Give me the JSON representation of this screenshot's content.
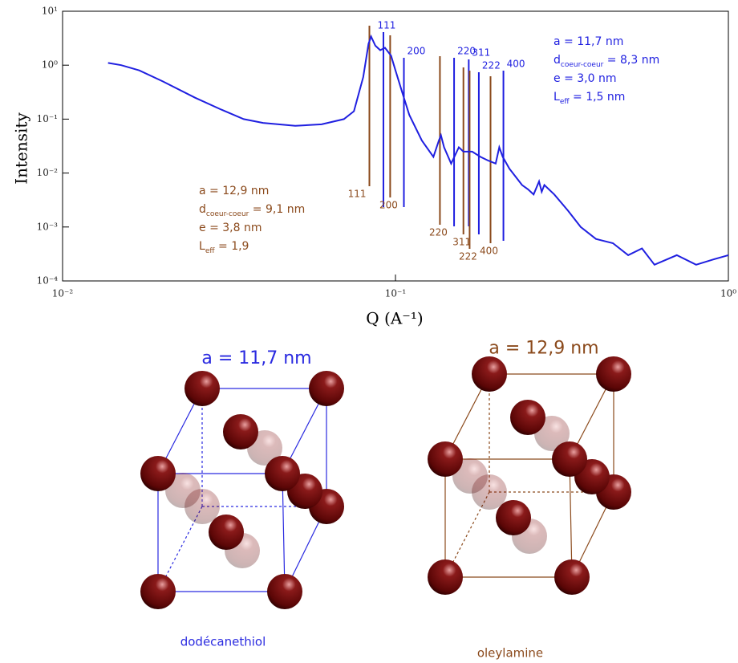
{
  "chart_data": {
    "type": "line",
    "xlabel": "Q (A⁻¹)",
    "ylabel": "Intensity",
    "xscale": "log",
    "yscale": "log",
    "xlim": [
      0.01,
      1
    ],
    "ylim": [
      0.0001,
      10
    ],
    "xticks": [
      {
        "value": 0.01,
        "label": "10⁻²"
      },
      {
        "value": 0.1,
        "label": "10⁻¹"
      },
      {
        "value": 1,
        "label": "10⁰"
      }
    ],
    "yticks": [
      {
        "value": 0.0001,
        "label": "10⁻⁴"
      },
      {
        "value": 0.001,
        "label": "10⁻³"
      },
      {
        "value": 0.01,
        "label": "10⁻²"
      },
      {
        "value": 0.1,
        "label": "10⁻¹"
      },
      {
        "value": 1,
        "label": "10⁰"
      },
      {
        "value": 10,
        "label": "10¹"
      }
    ],
    "x": [
      0.0137,
      0.015,
      0.017,
      0.02,
      0.025,
      0.03,
      0.035,
      0.04,
      0.05,
      0.06,
      0.07,
      0.075,
      0.08,
      0.083,
      0.0845,
      0.087,
      0.09,
      0.093,
      0.097,
      0.1,
      0.105,
      0.11,
      0.12,
      0.13,
      0.135,
      0.137,
      0.14,
      0.147,
      0.155,
      0.16,
      0.17,
      0.18,
      0.19,
      0.2,
      0.205,
      0.21,
      0.22,
      0.24,
      0.25,
      0.26,
      0.27,
      0.275,
      0.28,
      0.3,
      0.33,
      0.36,
      0.4,
      0.45,
      0.5,
      0.55,
      0.6,
      0.7,
      0.8,
      0.9,
      1.0
    ],
    "series": [
      {
        "color": "#1f1fe0",
        "values": [
          1.1,
          1.0,
          0.8,
          0.5,
          0.25,
          0.15,
          0.1,
          0.085,
          0.075,
          0.08,
          0.1,
          0.14,
          0.6,
          2.5,
          3.4,
          2.3,
          1.9,
          2.1,
          1.5,
          0.8,
          0.3,
          0.12,
          0.04,
          0.02,
          0.04,
          0.05,
          0.03,
          0.015,
          0.03,
          0.025,
          0.025,
          0.02,
          0.017,
          0.015,
          0.03,
          0.02,
          0.012,
          0.006,
          0.005,
          0.004,
          0.007,
          0.0045,
          0.006,
          0.004,
          0.002,
          0.001,
          0.0006,
          0.0005,
          0.0003,
          0.0004,
          0.0002,
          0.0003,
          0.0002,
          0.00025,
          0.0003
        ]
      }
    ],
    "reflections": [
      {
        "color": "#1f1fe0",
        "peaks": [
          {
            "hkl": "111",
            "q": 0.092
          },
          {
            "hkl": "200",
            "q": 0.106
          },
          {
            "hkl": "220",
            "q": 0.15
          },
          {
            "hkl": "311",
            "q": 0.166
          },
          {
            "hkl": "222",
            "q": 0.178
          },
          {
            "hkl": "400",
            "q": 0.211
          }
        ]
      },
      {
        "color": "#8b4a1c",
        "peaks": [
          {
            "hkl": "111",
            "q": 0.0835
          },
          {
            "hkl": "200",
            "q": 0.0964
          },
          {
            "hkl": "220",
            "q": 0.136
          },
          {
            "hkl": "311",
            "q": 0.16
          },
          {
            "hkl": "222",
            "q": 0.167
          },
          {
            "hkl": "400",
            "q": 0.193
          }
        ]
      }
    ],
    "annotations": [
      {
        "color": "#1f1fe0",
        "lines": [
          {
            "text": "a = 11,7 nm"
          },
          {
            "text": "d",
            "sub": "coeur-coeur",
            "after": " = 8,3 nm"
          },
          {
            "text": "e = 3,0 nm"
          },
          {
            "text": "L",
            "sub": "eff",
            "after": " = 1,5 nm"
          }
        ]
      },
      {
        "color": "#8b4a1c",
        "lines": [
          {
            "text": "a = 12,9 nm"
          },
          {
            "text": "d",
            "sub": "coeur-coeur",
            "after": " = 9,1 nm"
          },
          {
            "text": "e = 3,8 nm"
          },
          {
            "text": "L",
            "sub": "eff",
            "after": " = 1,9"
          }
        ]
      }
    ]
  },
  "diagrams": [
    {
      "title": "a = 11,7 nm",
      "label": "dodécanethiol",
      "color": "#2a2ae0"
    },
    {
      "title": "a = 12,9 nm",
      "label": "oleylamine",
      "color": "#8b4a1c"
    }
  ]
}
